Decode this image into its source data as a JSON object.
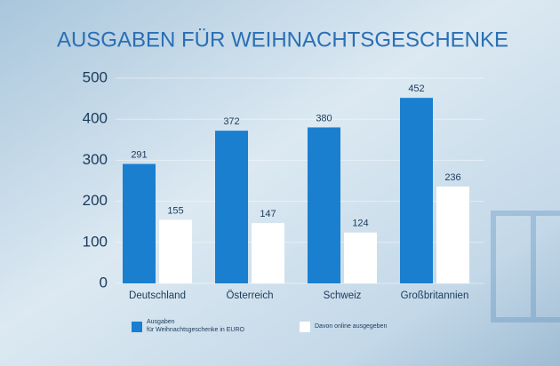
{
  "chart_data": {
    "type": "bar",
    "title": "AUSGABEN FÜR WEIHNACHTSGESCHENKE",
    "categories": [
      "Deutschland",
      "Österreich",
      "Schweiz",
      "Großbritannien"
    ],
    "series": [
      {
        "name": "Ausgaben\nfür Weihnachtsgeschenke in EURO",
        "color": "#1a7fcf",
        "values": [
          291,
          372,
          380,
          452
        ]
      },
      {
        "name": "Davon online ausgegeben",
        "color": "#ffffff",
        "values": [
          155,
          147,
          124,
          236
        ]
      }
    ],
    "ylim": [
      0,
      500
    ],
    "yticks": [
      0,
      100,
      200,
      300,
      400,
      500
    ],
    "grid": true
  }
}
